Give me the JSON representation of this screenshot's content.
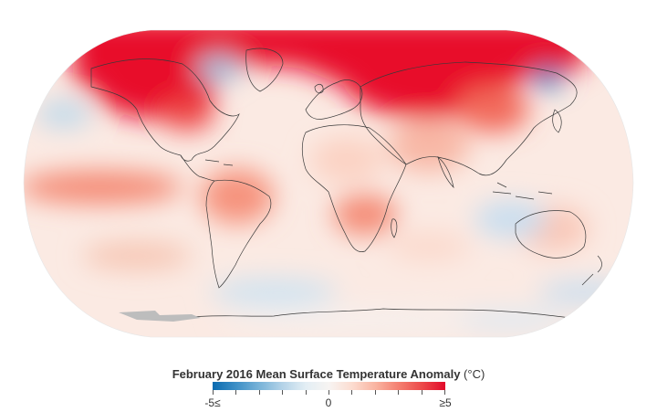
{
  "map": {
    "projection": "robinson",
    "colors": {
      "strong_warm": "#e8102a",
      "warm": "#f48a75",
      "slight_warm": "#fde6dc",
      "neutral": "#f7f4f2",
      "slight_cool": "#d6e8f3",
      "cool": "#7fb6da",
      "strong_cool": "#1372b8",
      "no_data": "#bdbdbd",
      "coastline": "#3a3a3a"
    }
  },
  "legend": {
    "title": "February 2016 Mean Surface Temperature Anomaly",
    "unit": "(°C)",
    "min_label": "-5≤",
    "mid_label": "0",
    "max_label": "≥5",
    "range": [
      -5,
      5
    ],
    "tick_values": [
      -5,
      -4,
      -3,
      -2,
      -1,
      0,
      1,
      2,
      3,
      4,
      5
    ],
    "colors": [
      "#0a6bb0",
      "#3d8fc6",
      "#78b3d8",
      "#b4d3e8",
      "#e3eef4",
      "#f7f4f2",
      "#fcdcd0",
      "#f9b4a1",
      "#f47f70",
      "#ec4a4a",
      "#e20a2a"
    ]
  }
}
